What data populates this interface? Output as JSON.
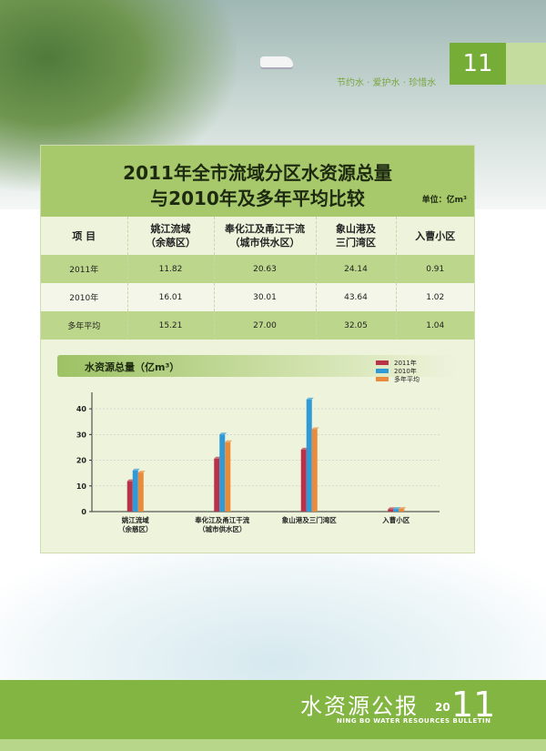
{
  "header": {
    "slogan": "节约水 · 爱护水 · 珍惜水",
    "page_number": "11"
  },
  "title_line1": "2011年全市流域分区水资源总量",
  "title_line2": "与2010年及多年平均比较",
  "unit": "单位：亿m³",
  "table": {
    "headers": [
      "项 目",
      "姚江流域",
      "（余慈区）",
      "奉化江及甬江干流",
      "（城市供水区）",
      "象山港及",
      "三门湾区",
      "入曹小区"
    ],
    "rows": [
      {
        "label": "2011年",
        "values": [
          "11.82",
          "20.63",
          "24.14",
          "0.91"
        ]
      },
      {
        "label": "2010年",
        "values": [
          "16.01",
          "30.01",
          "43.64",
          "1.02"
        ]
      },
      {
        "label": "多年平均",
        "values": [
          "15.21",
          "27.00",
          "32.05",
          "1.04"
        ]
      }
    ]
  },
  "chart_data": {
    "type": "bar",
    "title": "水资源总量（亿m³）",
    "categories": [
      "姚江流域",
      "奉化江及甬江干流",
      "象山港及三门湾区",
      "入曹小区"
    ],
    "category_sublabels": [
      "（余慈区）",
      "（城市供水区）",
      "",
      ""
    ],
    "series": [
      {
        "name": "2011年",
        "values": [
          11.82,
          20.63,
          24.14,
          0.91
        ],
        "color": "#b8324a"
      },
      {
        "name": "2010年",
        "values": [
          16.01,
          30.01,
          43.64,
          1.02
        ],
        "color": "#2f9ad6"
      },
      {
        "name": "多年平均",
        "values": [
          15.21,
          27.0,
          32.05,
          1.04
        ],
        "color": "#e98a3c"
      }
    ],
    "ylim": [
      0,
      45
    ],
    "yticks": [
      0,
      10,
      20,
      30,
      40
    ],
    "legend": "top-right"
  },
  "footer": {
    "title": "水资源公报",
    "subtitle": "NING BO WATER RESOURCES BULLETIN",
    "year_a": "20",
    "year_b": "11"
  }
}
